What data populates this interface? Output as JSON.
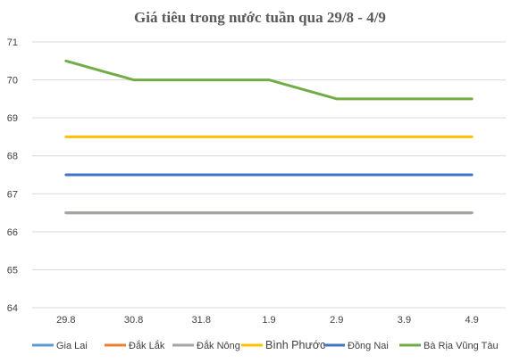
{
  "chart_data": {
    "type": "line",
    "title": "Giá tiêu trong nước tuần qua 29/8 - 4/9",
    "categories": [
      "29.8",
      "30.8",
      "31.8",
      "1.9",
      "2.9",
      "3.9",
      "4.9"
    ],
    "ylim": [
      64,
      71
    ],
    "yticks": [
      64,
      65,
      66,
      67,
      68,
      69,
      70,
      71
    ],
    "grid": true,
    "legend_position": "bottom",
    "series": [
      {
        "name": "Gia Lai",
        "color": "#5b9bd5",
        "values": [
          66.5,
          66.5,
          66.5,
          66.5,
          66.5,
          66.5,
          66.5
        ]
      },
      {
        "name": "Đắk Lắk",
        "color": "#ed7d31",
        "values": [
          66.5,
          66.5,
          66.5,
          66.5,
          66.5,
          66.5,
          66.5
        ]
      },
      {
        "name": "Đắk Nông",
        "color": "#a5a5a5",
        "values": [
          66.5,
          66.5,
          66.5,
          66.5,
          66.5,
          66.5,
          66.5
        ]
      },
      {
        "name": "Bình Phước",
        "color": "#ffc000",
        "values": [
          68.5,
          68.5,
          68.5,
          68.5,
          68.5,
          68.5,
          68.5
        ]
      },
      {
        "name": "Đồng Nai",
        "color": "#4472c4",
        "values": [
          67.5,
          67.5,
          67.5,
          67.5,
          67.5,
          67.5,
          67.5
        ]
      },
      {
        "name": "Bà Rịa Vũng Tàu",
        "color": "#70ad47",
        "values": [
          70.5,
          70.0,
          70.0,
          70.0,
          69.5,
          69.5,
          69.5
        ]
      }
    ]
  }
}
